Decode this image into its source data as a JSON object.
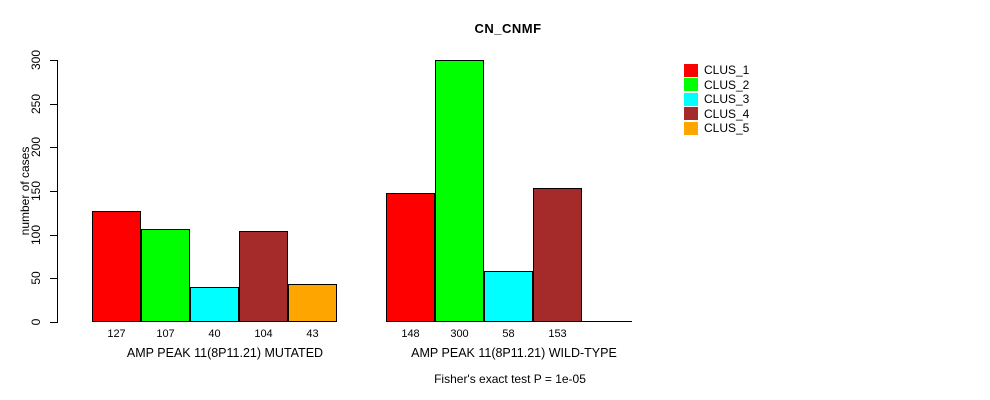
{
  "chart_data": {
    "type": "bar",
    "title": "CN_CNMF",
    "xlabel": "",
    "ylabel": "number of cases",
    "ylim": [
      0,
      300
    ],
    "yticks": [
      0,
      50,
      100,
      150,
      200,
      250,
      300
    ],
    "grid": false,
    "legend_position": "right",
    "bar_value_labels_shown": true,
    "categories": [
      "AMP PEAK 11(8P11.21) MUTATED",
      "AMP PEAK 11(8P11.21) WILD-TYPE"
    ],
    "series": [
      {
        "name": "CLUS_1",
        "color": "#FF0000",
        "values": [
          127,
          148
        ]
      },
      {
        "name": "CLUS_2",
        "color": "#00FF00",
        "values": [
          107,
          300
        ]
      },
      {
        "name": "CLUS_3",
        "color": "#00FFFF",
        "values": [
          40,
          58
        ]
      },
      {
        "name": "CLUS_4",
        "color": "#A52A2A",
        "values": [
          104,
          153
        ]
      },
      {
        "name": "CLUS_5",
        "color": "#FFA500",
        "values": [
          43,
          0
        ]
      }
    ],
    "annotation": "Fisher's exact test P = 1e-05"
  },
  "colors": {
    "axis": "#000000",
    "text": "#000000",
    "background": "#ffffff"
  }
}
